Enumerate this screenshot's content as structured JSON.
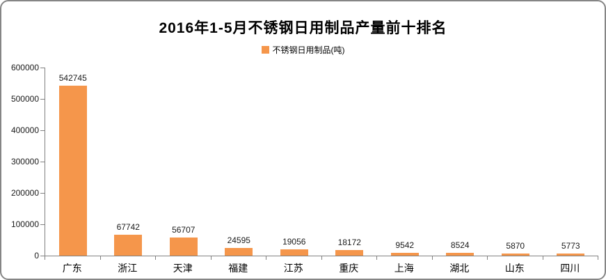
{
  "chart_data": {
    "type": "bar",
    "title": "2016年1-5月不锈钢日用制品产量前十排名",
    "categories": [
      "广东",
      "浙江",
      "天津",
      "福建",
      "江苏",
      "重庆",
      "上海",
      "湖北",
      "山东",
      "四川"
    ],
    "series": [
      {
        "name": "不锈钢日用制品(吨)",
        "values": [
          542745,
          67742,
          56707,
          24595,
          19056,
          18172,
          9542,
          8524,
          5870,
          5773
        ]
      }
    ],
    "xlabel": "",
    "ylabel": "",
    "ylim": [
      0,
      600000
    ],
    "yticks": [
      0,
      100000,
      200000,
      300000,
      400000,
      500000,
      600000
    ],
    "grid": false,
    "legend_position": "top",
    "data_labels": true
  },
  "colors": {
    "bar": "#F5964B",
    "axis": "#808080",
    "frame_border": "#858585",
    "text": "#000000"
  }
}
